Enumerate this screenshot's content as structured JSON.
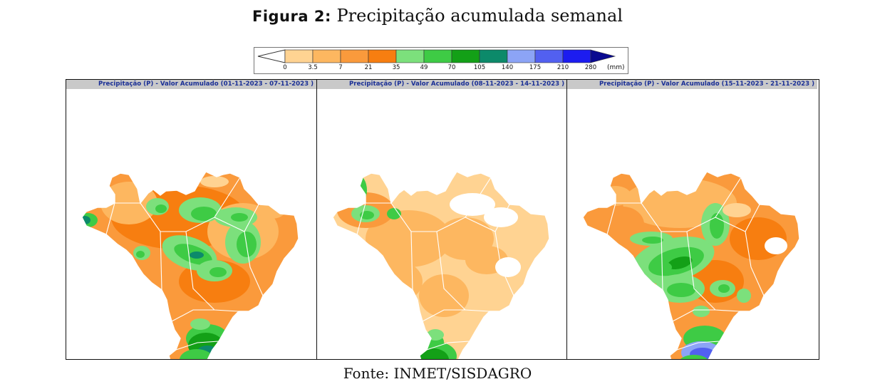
{
  "figure": {
    "label": "Figura 2:",
    "title": "Precipitação acumulada semanal",
    "source": "Fonte: INMET/SISDAGRO"
  },
  "legend": {
    "unit": "(mm)",
    "ticks": [
      "0",
      "3.5",
      "7",
      "21",
      "35",
      "49",
      "70",
      "105",
      "140",
      "175",
      "210",
      "280"
    ],
    "colors": [
      "#ffd392",
      "#fdb760",
      "#fa9a3c",
      "#f77e10",
      "#7ce07c",
      "#3ecb45",
      "#13a017",
      "#0c8a6a",
      "#8ca4f6",
      "#5260f0",
      "#1c1cf0",
      "#0a0a90"
    ]
  },
  "panels": [
    {
      "title": "Precipitação (P) - Valor Acumulado (01-11-2023 - 07-11-2023 )"
    },
    {
      "title": "Precipitação (P) - Valor Acumulado (08-11-2023 - 14-11-2023 )"
    },
    {
      "title": "Precipitação (P) - Valor Acumulado (15-11-2023 - 21-11-2023 )"
    }
  ]
}
